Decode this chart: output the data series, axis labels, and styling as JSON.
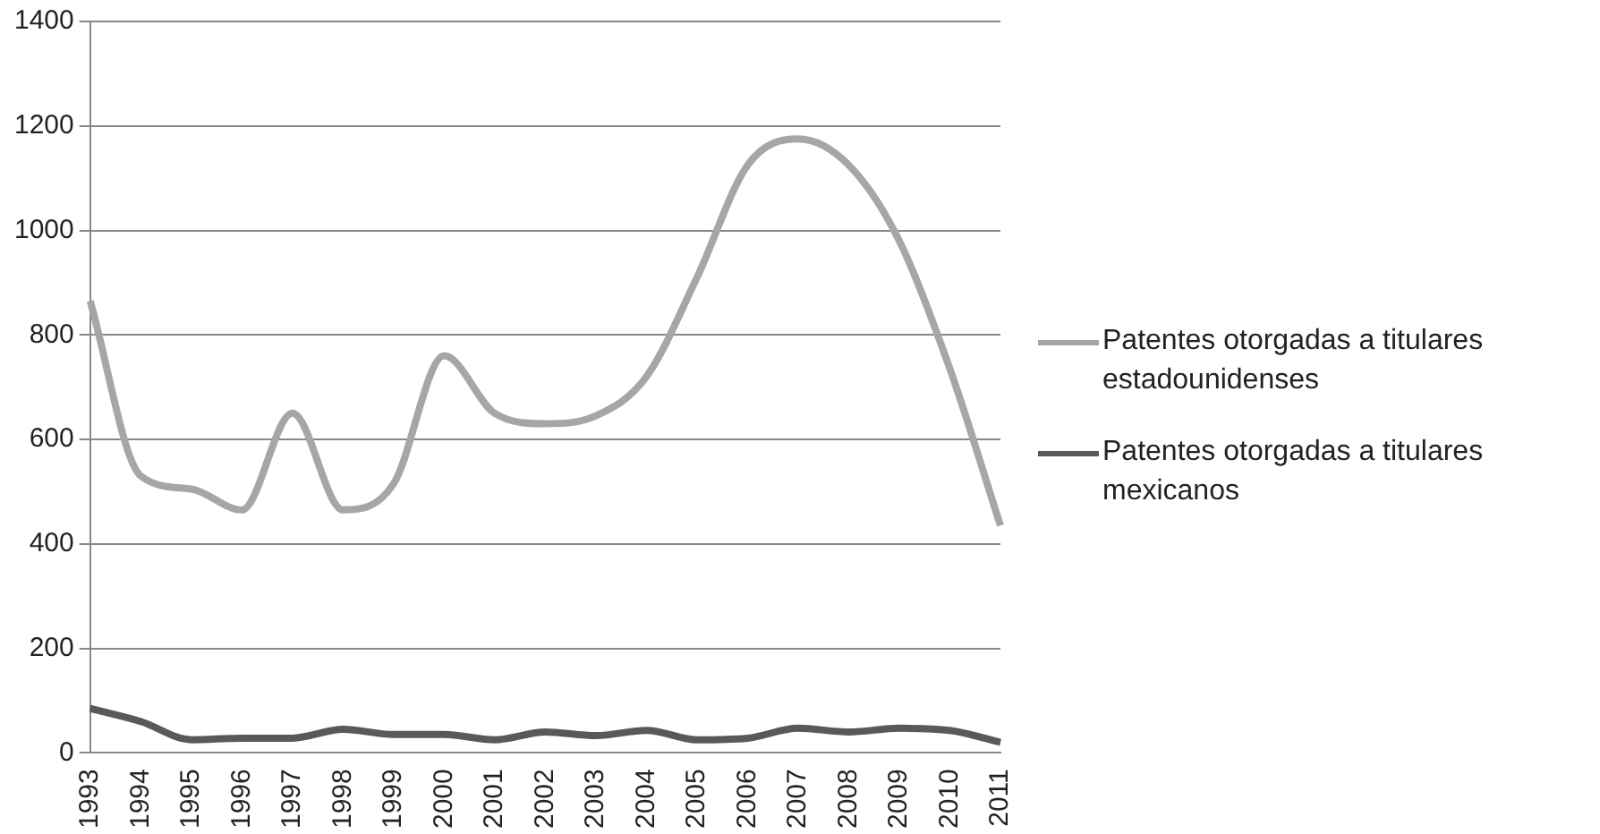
{
  "chart_data": {
    "type": "line",
    "categories": [
      "1993",
      "1994",
      "1995",
      "1996",
      "1997",
      "1998",
      "1999",
      "2000",
      "2001",
      "2002",
      "2003",
      "2004",
      "2005",
      "2006",
      "2007",
      "2008",
      "2009",
      "2010",
      "2011"
    ],
    "series": [
      {
        "name": "Patentes otorgadas a titulares estadounidenses",
        "color": "#a6a6a6",
        "values": [
          865,
          530,
          505,
          465,
          650,
          465,
          515,
          760,
          650,
          630,
          645,
          720,
          910,
          1125,
          1175,
          1125,
          980,
          735,
          435
        ]
      },
      {
        "name": "Patentes otorgadas a titulares mexicanos",
        "color": "#595959",
        "values": [
          85,
          60,
          25,
          28,
          28,
          45,
          35,
          35,
          25,
          40,
          33,
          43,
          25,
          28,
          47,
          40,
          47,
          43,
          20
        ]
      }
    ],
    "ylim": [
      0,
      1400
    ],
    "yticks": [
      0,
      200,
      400,
      600,
      800,
      1000,
      1200,
      1400
    ],
    "grid": "y",
    "legend": "right",
    "marker": "none",
    "line_style": "solid"
  }
}
